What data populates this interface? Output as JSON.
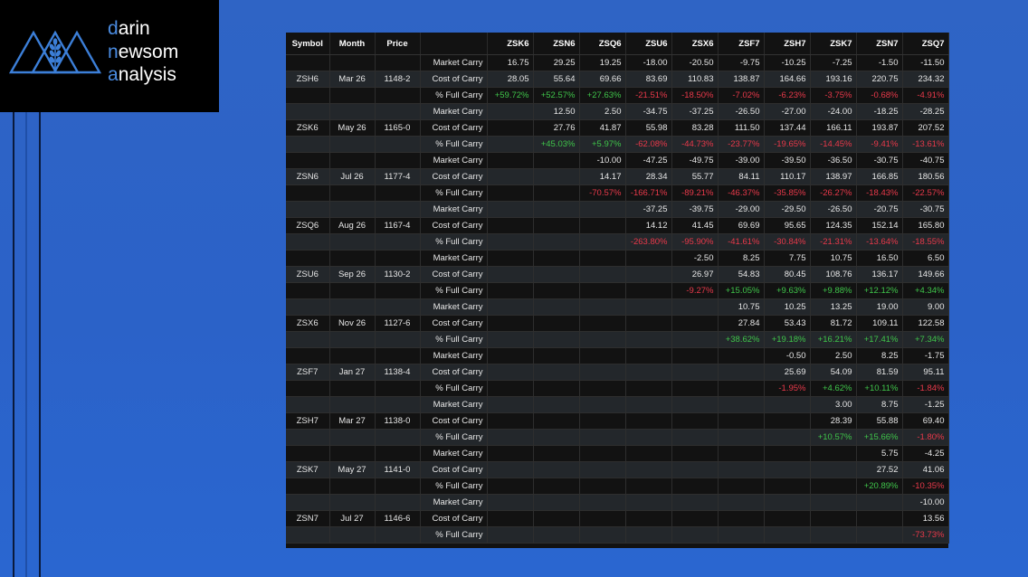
{
  "logo": {
    "line1_accent": "d",
    "line1_rest": "arin",
    "line2_accent": "n",
    "line2_rest": "ewsom",
    "line3_accent": "a",
    "line3_rest": "nalysis",
    "accent_color": "#4a8be0"
  },
  "table": {
    "headers": [
      "Symbol",
      "Month",
      "Price",
      "",
      "ZSK6",
      "ZSN6",
      "ZSQ6",
      "ZSU6",
      "ZSX6",
      "ZSF7",
      "ZSH7",
      "ZSK7",
      "ZSN7",
      "ZSQ7"
    ],
    "rows": [
      [
        "",
        "",
        "",
        "Market Carry",
        "16.75",
        "29.25",
        "19.25",
        "-18.00",
        "-20.50",
        "-9.75",
        "-10.25",
        "-7.25",
        "-1.50",
        "-11.50"
      ],
      [
        "ZSH6",
        "Mar 26",
        "1148-2",
        "Cost of Carry",
        "28.05",
        "55.64",
        "69.66",
        "83.69",
        "110.83",
        "138.87",
        "164.66",
        "193.16",
        "220.75",
        "234.32"
      ],
      [
        "",
        "",
        "",
        "% Full Carry",
        "+59.72%",
        "+52.57%",
        "+27.63%",
        "-21.51%",
        "-18.50%",
        "-7.02%",
        "-6.23%",
        "-3.75%",
        "-0.68%",
        "-4.91%"
      ],
      [
        "",
        "",
        "",
        "Market Carry",
        "",
        "12.50",
        "2.50",
        "-34.75",
        "-37.25",
        "-26.50",
        "-27.00",
        "-24.00",
        "-18.25",
        "-28.25"
      ],
      [
        "ZSK6",
        "May 26",
        "1165-0",
        "Cost of Carry",
        "",
        "27.76",
        "41.87",
        "55.98",
        "83.28",
        "111.50",
        "137.44",
        "166.11",
        "193.87",
        "207.52"
      ],
      [
        "",
        "",
        "",
        "% Full Carry",
        "",
        "+45.03%",
        "+5.97%",
        "-62.08%",
        "-44.73%",
        "-23.77%",
        "-19.65%",
        "-14.45%",
        "-9.41%",
        "-13.61%"
      ],
      [
        "",
        "",
        "",
        "Market Carry",
        "",
        "",
        "-10.00",
        "-47.25",
        "-49.75",
        "-39.00",
        "-39.50",
        "-36.50",
        "-30.75",
        "-40.75"
      ],
      [
        "ZSN6",
        "Jul 26",
        "1177-4",
        "Cost of Carry",
        "",
        "",
        "14.17",
        "28.34",
        "55.77",
        "84.11",
        "110.17",
        "138.97",
        "166.85",
        "180.56"
      ],
      [
        "",
        "",
        "",
        "% Full Carry",
        "",
        "",
        "-70.57%",
        "-166.71%",
        "-89.21%",
        "-46.37%",
        "-35.85%",
        "-26.27%",
        "-18.43%",
        "-22.57%"
      ],
      [
        "",
        "",
        "",
        "Market Carry",
        "",
        "",
        "",
        "-37.25",
        "-39.75",
        "-29.00",
        "-29.50",
        "-26.50",
        "-20.75",
        "-30.75"
      ],
      [
        "ZSQ6",
        "Aug 26",
        "1167-4",
        "Cost of Carry",
        "",
        "",
        "",
        "14.12",
        "41.45",
        "69.69",
        "95.65",
        "124.35",
        "152.14",
        "165.80"
      ],
      [
        "",
        "",
        "",
        "% Full Carry",
        "",
        "",
        "",
        "-263.80%",
        "-95.90%",
        "-41.61%",
        "-30.84%",
        "-21.31%",
        "-13.64%",
        "-18.55%"
      ],
      [
        "",
        "",
        "",
        "Market Carry",
        "",
        "",
        "",
        "",
        "-2.50",
        "8.25",
        "7.75",
        "10.75",
        "16.50",
        "6.50"
      ],
      [
        "ZSU6",
        "Sep 26",
        "1130-2",
        "Cost of Carry",
        "",
        "",
        "",
        "",
        "26.97",
        "54.83",
        "80.45",
        "108.76",
        "136.17",
        "149.66"
      ],
      [
        "",
        "",
        "",
        "% Full Carry",
        "",
        "",
        "",
        "",
        "-9.27%",
        "+15.05%",
        "+9.63%",
        "+9.88%",
        "+12.12%",
        "+4.34%"
      ],
      [
        "",
        "",
        "",
        "Market Carry",
        "",
        "",
        "",
        "",
        "",
        "10.75",
        "10.25",
        "13.25",
        "19.00",
        "9.00"
      ],
      [
        "ZSX6",
        "Nov 26",
        "1127-6",
        "Cost of Carry",
        "",
        "",
        "",
        "",
        "",
        "27.84",
        "53.43",
        "81.72",
        "109.11",
        "122.58"
      ],
      [
        "",
        "",
        "",
        "% Full Carry",
        "",
        "",
        "",
        "",
        "",
        "+38.62%",
        "+19.18%",
        "+16.21%",
        "+17.41%",
        "+7.34%"
      ],
      [
        "",
        "",
        "",
        "Market Carry",
        "",
        "",
        "",
        "",
        "",
        "",
        "-0.50",
        "2.50",
        "8.25",
        "-1.75"
      ],
      [
        "ZSF7",
        "Jan 27",
        "1138-4",
        "Cost of Carry",
        "",
        "",
        "",
        "",
        "",
        "",
        "25.69",
        "54.09",
        "81.59",
        "95.11"
      ],
      [
        "",
        "",
        "",
        "% Full Carry",
        "",
        "",
        "",
        "",
        "",
        "",
        "-1.95%",
        "+4.62%",
        "+10.11%",
        "-1.84%"
      ],
      [
        "",
        "",
        "",
        "Market Carry",
        "",
        "",
        "",
        "",
        "",
        "",
        "",
        "3.00",
        "8.75",
        "-1.25"
      ],
      [
        "ZSH7",
        "Mar 27",
        "1138-0",
        "Cost of Carry",
        "",
        "",
        "",
        "",
        "",
        "",
        "",
        "28.39",
        "55.88",
        "69.40"
      ],
      [
        "",
        "",
        "",
        "% Full Carry",
        "",
        "",
        "",
        "",
        "",
        "",
        "",
        "+10.57%",
        "+15.66%",
        "-1.80%"
      ],
      [
        "",
        "",
        "",
        "Market Carry",
        "",
        "",
        "",
        "",
        "",
        "",
        "",
        "",
        "5.75",
        "-4.25"
      ],
      [
        "ZSK7",
        "May 27",
        "1141-0",
        "Cost of Carry",
        "",
        "",
        "",
        "",
        "",
        "",
        "",
        "",
        "27.52",
        "41.06"
      ],
      [
        "",
        "",
        "",
        "% Full Carry",
        "",
        "",
        "",
        "",
        "",
        "",
        "",
        "",
        "+20.89%",
        "-10.35%"
      ],
      [
        "",
        "",
        "",
        "Market Carry",
        "",
        "",
        "",
        "",
        "",
        "",
        "",
        "",
        "",
        "-10.00"
      ],
      [
        "ZSN7",
        "Jul 27",
        "1146-6",
        "Cost of Carry",
        "",
        "",
        "",
        "",
        "",
        "",
        "",
        "",
        "",
        "13.56"
      ],
      [
        "",
        "",
        "",
        "% Full Carry",
        "",
        "",
        "",
        "",
        "",
        "",
        "",
        "",
        "",
        "-73.73%"
      ]
    ]
  },
  "colors": {
    "positive": "#3fc44a",
    "negative": "#e8394a",
    "row_dark": "#121212",
    "row_light": "#23272b",
    "background": "#2b62c8"
  }
}
